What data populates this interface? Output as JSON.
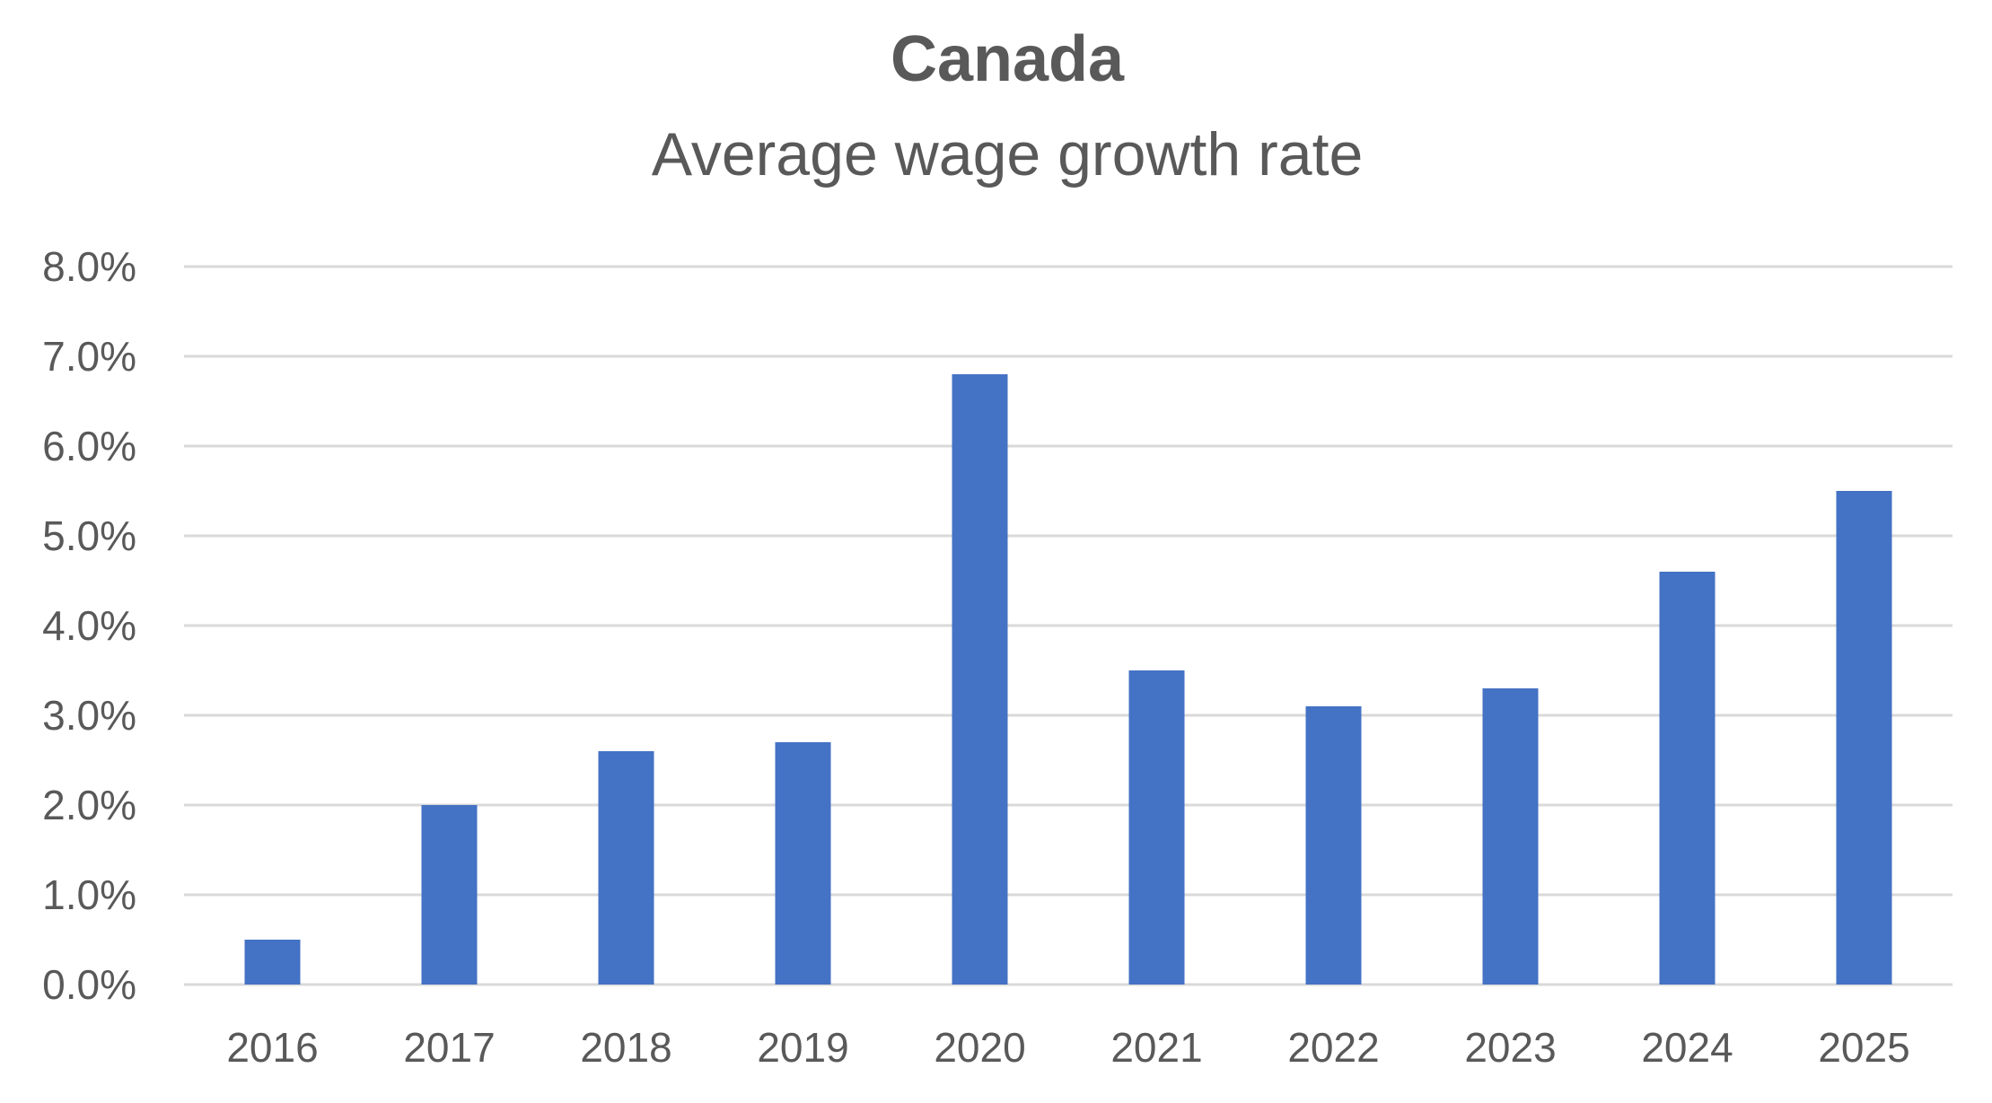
{
  "chart_data": {
    "type": "bar",
    "title": "Canada",
    "subtitle": "Average wage growth rate",
    "xlabel": "",
    "ylabel": "",
    "categories": [
      "2016",
      "2017",
      "2018",
      "2019",
      "2020",
      "2021",
      "2022",
      "2023",
      "2024",
      "2025"
    ],
    "values": [
      0.5,
      2.0,
      2.6,
      2.7,
      6.8,
      3.5,
      3.1,
      3.3,
      4.6,
      5.5
    ],
    "value_unit": "%",
    "ylim": [
      0,
      8
    ],
    "yticks": [
      0,
      1,
      2,
      3,
      4,
      5,
      6,
      7,
      8
    ],
    "ytick_labels": [
      "0.0%",
      "1.0%",
      "2.0%",
      "3.0%",
      "4.0%",
      "5.0%",
      "6.0%",
      "7.0%",
      "8.0%"
    ],
    "grid": true,
    "legend": "none",
    "bar_color": "#4472c4",
    "text_color": "#595959",
    "grid_color": "#d9d9d9"
  }
}
